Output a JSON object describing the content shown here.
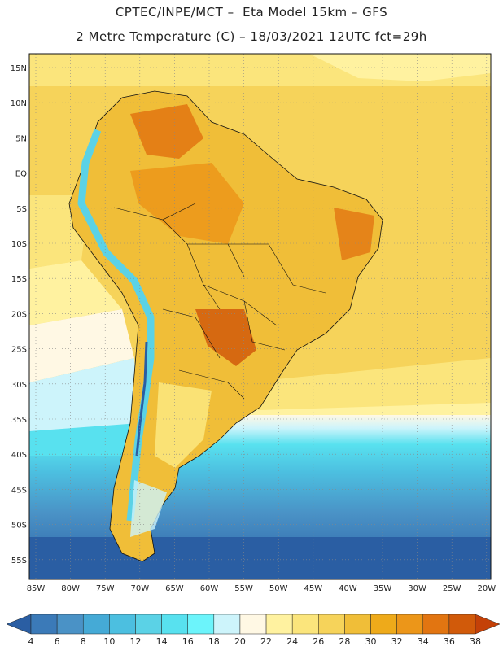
{
  "title": {
    "line1": "CPTEC/INPE/MCT –  Eta Model 15km – GFS",
    "line2": "2 Metre Temperature (C) – 18/03/2021 12UTC fct=29h"
  },
  "map_data": {
    "lat_labels": [
      "15N",
      "10N",
      "5N",
      "EQ",
      "5S",
      "10S",
      "15S",
      "20S",
      "25S",
      "30S",
      "35S",
      "40S",
      "45S",
      "50S",
      "55S"
    ],
    "lon_labels": [
      "85W",
      "80W",
      "75W",
      "70W",
      "65W",
      "60W",
      "55W",
      "50W",
      "45W",
      "40W",
      "35W",
      "30W",
      "25W",
      "20W"
    ],
    "legend_values": [
      4,
      6,
      8,
      10,
      12,
      14,
      16,
      18,
      20,
      22,
      24,
      26,
      28,
      30,
      32,
      34,
      36,
      38
    ],
    "legend_colors": [
      "#2a5ea3",
      "#3b7ab8",
      "#4a92c6",
      "#45aad6",
      "#4cbfe0",
      "#5bd2e6",
      "#58e1ef",
      "#6cf4fb",
      "#cdf4fb",
      "#fff8e4",
      "#fff2a0",
      "#fbe57c",
      "#f6d35a",
      "#f0be38",
      "#eeaa1a",
      "#ec9619",
      "#e27511",
      "#d15a0a",
      "#c44108"
    ]
  }
}
